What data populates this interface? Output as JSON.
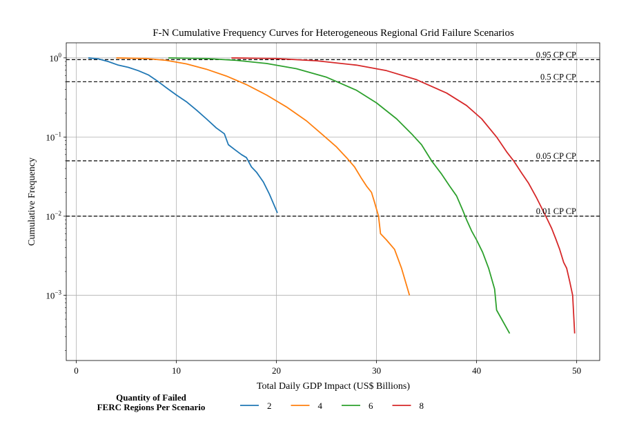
{
  "chart_data": {
    "type": "line",
    "title": "F-N Cumulative Frequency Curves for Heterogeneous Regional Grid Failure Scenarios",
    "xlabel": "Total Daily GDP Impact (US$ Billions)",
    "ylabel": "Cumulative Frequency",
    "xlim": [
      -1,
      52.3
    ],
    "ylim": [
      0.00015,
      1.55
    ],
    "yscale": "log",
    "grid": true,
    "x_ticks": [
      {
        "value": 0,
        "label": "0"
      },
      {
        "value": 10,
        "label": "10"
      },
      {
        "value": 20,
        "label": "20"
      },
      {
        "value": 30,
        "label": "30"
      },
      {
        "value": 40,
        "label": "40"
      },
      {
        "value": 50,
        "label": "50"
      }
    ],
    "y_ticks": [
      {
        "value": 1,
        "base": "10",
        "exp": "0"
      },
      {
        "value": 0.1,
        "base": "10",
        "exp": "−1"
      },
      {
        "value": 0.01,
        "base": "10",
        "exp": "−2"
      },
      {
        "value": 0.001,
        "base": "10",
        "exp": "−3"
      }
    ],
    "reference_lines": [
      {
        "y": 0.95,
        "label": "0.95 CP CP"
      },
      {
        "y": 0.5,
        "label": "0.5 CP CP"
      },
      {
        "y": 0.05,
        "label": "0.05 CP CP"
      },
      {
        "y": 0.01,
        "label": "0.01 CP CP"
      }
    ],
    "legend": {
      "title_line1": "Quantity of Failed",
      "title_line2": "FERC Regions Per Scenario",
      "placement": "below"
    },
    "series": [
      {
        "name": "2",
        "color": "#1f77b4",
        "points": [
          [
            1.2,
            1.0
          ],
          [
            2.2,
            0.97
          ],
          [
            3.2,
            0.9
          ],
          [
            4.2,
            0.81
          ],
          [
            5.2,
            0.76
          ],
          [
            6.2,
            0.69
          ],
          [
            7.2,
            0.61
          ],
          [
            8.2,
            0.5
          ],
          [
            9.0,
            0.42
          ],
          [
            10.0,
            0.34
          ],
          [
            11.0,
            0.28
          ],
          [
            12.0,
            0.22
          ],
          [
            13.0,
            0.17
          ],
          [
            14.0,
            0.13
          ],
          [
            14.8,
            0.11
          ],
          [
            15.2,
            0.08
          ],
          [
            15.8,
            0.07
          ],
          [
            16.5,
            0.06
          ],
          [
            17.0,
            0.055
          ],
          [
            17.5,
            0.042
          ],
          [
            18.0,
            0.036
          ],
          [
            18.7,
            0.027
          ],
          [
            19.3,
            0.019
          ],
          [
            20.1,
            0.011
          ]
        ]
      },
      {
        "name": "4",
        "color": "#ff7f0e",
        "points": [
          [
            4.0,
            1.0
          ],
          [
            7.0,
            0.98
          ],
          [
            9.0,
            0.93
          ],
          [
            11.0,
            0.84
          ],
          [
            13.0,
            0.72
          ],
          [
            15.0,
            0.59
          ],
          [
            17.0,
            0.46
          ],
          [
            19.0,
            0.34
          ],
          [
            21.0,
            0.24
          ],
          [
            23.0,
            0.16
          ],
          [
            24.5,
            0.11
          ],
          [
            26.0,
            0.075
          ],
          [
            27.0,
            0.055
          ],
          [
            27.8,
            0.042
          ],
          [
            28.5,
            0.03
          ],
          [
            29.0,
            0.024
          ],
          [
            29.5,
            0.02
          ],
          [
            29.8,
            0.015
          ],
          [
            30.2,
            0.01
          ],
          [
            30.4,
            0.006
          ],
          [
            31.0,
            0.005
          ],
          [
            31.8,
            0.0038
          ],
          [
            32.5,
            0.0022
          ],
          [
            33.3,
            0.001
          ]
        ]
      },
      {
        "name": "6",
        "color": "#2ca02c",
        "points": [
          [
            9.2,
            1.0
          ],
          [
            13.0,
            0.98
          ],
          [
            16.0,
            0.93
          ],
          [
            19.0,
            0.85
          ],
          [
            22.0,
            0.73
          ],
          [
            25.0,
            0.57
          ],
          [
            28.0,
            0.39
          ],
          [
            30.0,
            0.27
          ],
          [
            32.0,
            0.17
          ],
          [
            33.5,
            0.11
          ],
          [
            34.5,
            0.08
          ],
          [
            35.5,
            0.05
          ],
          [
            36.5,
            0.034
          ],
          [
            37.3,
            0.024
          ],
          [
            38.0,
            0.018
          ],
          [
            38.6,
            0.012
          ],
          [
            39.0,
            0.009
          ],
          [
            39.5,
            0.0065
          ],
          [
            40.0,
            0.005
          ],
          [
            40.6,
            0.0035
          ],
          [
            41.2,
            0.0022
          ],
          [
            41.8,
            0.0012
          ],
          [
            42.0,
            0.00065
          ],
          [
            43.3,
            0.00033
          ]
        ]
      },
      {
        "name": "8",
        "color": "#d62728",
        "points": [
          [
            15.5,
            1.0
          ],
          [
            20.0,
            0.98
          ],
          [
            24.0,
            0.92
          ],
          [
            28.0,
            0.81
          ],
          [
            31.0,
            0.69
          ],
          [
            34.0,
            0.53
          ],
          [
            37.0,
            0.36
          ],
          [
            39.0,
            0.25
          ],
          [
            40.5,
            0.17
          ],
          [
            42.0,
            0.1
          ],
          [
            43.0,
            0.065
          ],
          [
            43.7,
            0.05
          ],
          [
            44.5,
            0.035
          ],
          [
            45.2,
            0.026
          ],
          [
            46.0,
            0.017
          ],
          [
            46.6,
            0.012
          ],
          [
            47.0,
            0.0095
          ],
          [
            47.5,
            0.007
          ],
          [
            47.9,
            0.0052
          ],
          [
            48.3,
            0.0038
          ],
          [
            48.7,
            0.0026
          ],
          [
            49.0,
            0.0022
          ],
          [
            49.3,
            0.0015
          ],
          [
            49.6,
            0.001
          ],
          [
            49.8,
            0.00033
          ]
        ]
      }
    ]
  }
}
